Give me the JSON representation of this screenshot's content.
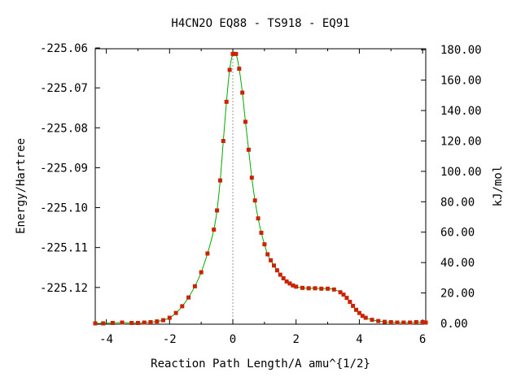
{
  "chart_data": {
    "type": "line",
    "title": "H4CN2O   EQ88 - TS918 - EQ91",
    "xlabel": "Reaction Path Length/A amu^{1/2}",
    "ylabel_left": "Energy/Hartree",
    "ylabel_right": "kJ/mol",
    "xlim": [
      -4.35,
      6.1
    ],
    "ylim": [
      -225.1292,
      -225.0602
    ],
    "x_ticks": [
      -4,
      -2,
      0,
      2,
      4,
      6
    ],
    "x_tick_labels": [
      "-4",
      "-2",
      "0",
      "2",
      "4",
      "6"
    ],
    "y_ticks_left": [
      -225.06,
      -225.07,
      -225.08,
      -225.09,
      -225.1,
      -225.11,
      -225.12
    ],
    "y_tick_labels_left": [
      "-225.06",
      "-225.07",
      "-225.08",
      "-225.09",
      "-225.10",
      "-225.11",
      "-225.12"
    ],
    "y_ticks_right": [
      0,
      20,
      40,
      60,
      80,
      100,
      120,
      140,
      160,
      180
    ],
    "y_tick_labels_right": [
      "0.00",
      "20.00",
      "40.00",
      "60.00",
      "80.00",
      "100.00",
      "120.00",
      "140.00",
      "160.00",
      "180.00"
    ],
    "ts_marker_x": 0,
    "line_color": "#00aa00",
    "marker_color": "#cc2200",
    "series": [
      {
        "x": [
          -4.35,
          -4.1,
          -3.8,
          -3.5,
          -3.2,
          -3.0,
          -2.8,
          -2.6,
          -2.4,
          -2.2,
          -2.0,
          -1.8,
          -1.6,
          -1.4,
          -1.2,
          -1.0,
          -0.8,
          -0.6,
          -0.5,
          -0.4,
          -0.3,
          -0.2,
          -0.1,
          0.0,
          0.1,
          0.2,
          0.3,
          0.4,
          0.5,
          0.6,
          0.7,
          0.8,
          0.9,
          1.0,
          1.1,
          1.2,
          1.3,
          1.4,
          1.5,
          1.6,
          1.7,
          1.8,
          1.9,
          2.0,
          2.2,
          2.4,
          2.6,
          2.8,
          3.0,
          3.2,
          3.4,
          3.5,
          3.6,
          3.7,
          3.8,
          3.9,
          4.0,
          4.1,
          4.2,
          4.4,
          4.6,
          4.8,
          5.0,
          5.2,
          5.4,
          5.6,
          5.8,
          6.0,
          6.1
        ],
        "y": [
          -225.129,
          -225.129,
          -225.1289,
          -225.1288,
          -225.1289,
          -225.1289,
          -225.1288,
          -225.1287,
          -225.1285,
          -225.1282,
          -225.1276,
          -225.1264,
          -225.1247,
          -225.1225,
          -225.1197,
          -225.1162,
          -225.1115,
          -225.1055,
          -225.1007,
          -225.0932,
          -225.0833,
          -225.0735,
          -225.0655,
          -225.0615,
          -225.0615,
          -225.0652,
          -225.0712,
          -225.0785,
          -225.0855,
          -225.0925,
          -225.0982,
          -225.1027,
          -225.1063,
          -225.1092,
          -225.1117,
          -225.1132,
          -225.1145,
          -225.1157,
          -225.1168,
          -225.1177,
          -225.1185,
          -225.119,
          -225.1195,
          -225.1198,
          -225.1201,
          -225.1202,
          -225.1202,
          -225.1203,
          -225.1203,
          -225.1205,
          -225.1212,
          -225.1218,
          -225.1226,
          -225.1236,
          -225.1246,
          -225.1256,
          -225.1264,
          -225.1271,
          -225.1276,
          -225.1281,
          -225.1284,
          -225.1286,
          -225.1287,
          -225.1288,
          -225.1288,
          -225.1288,
          -225.1287,
          -225.1287,
          -225.1288
        ]
      }
    ]
  }
}
